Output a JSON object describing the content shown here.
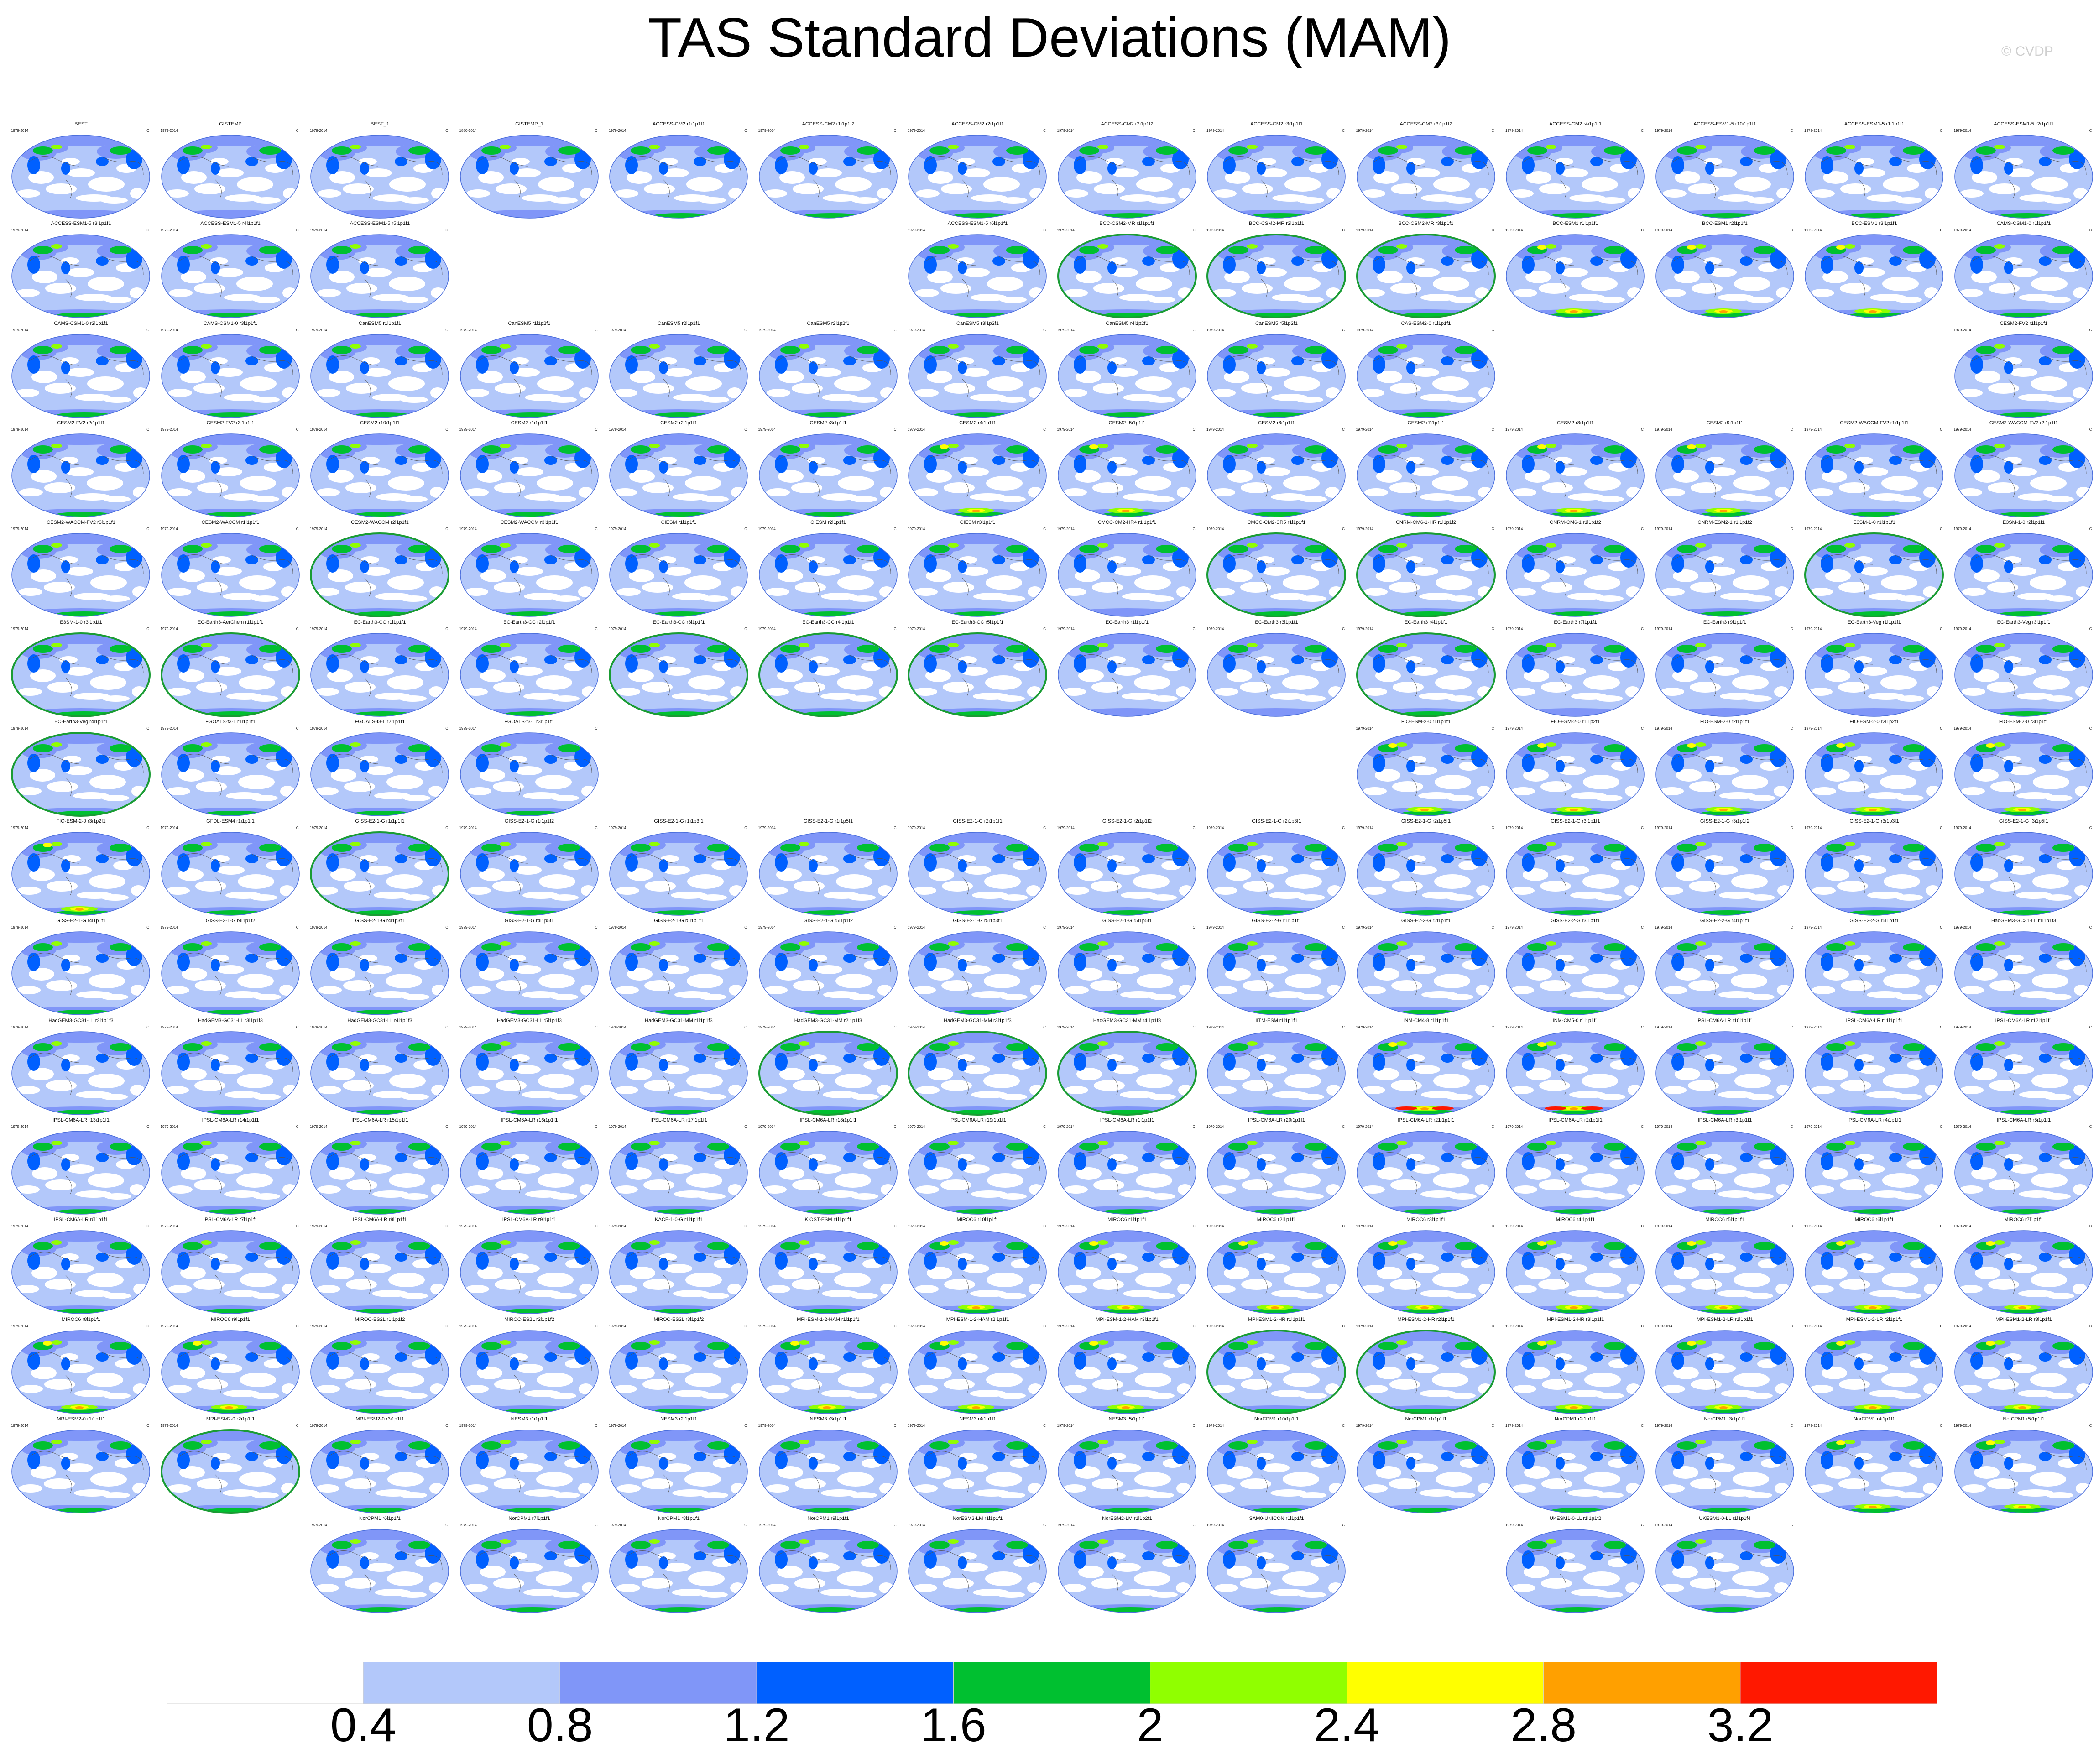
{
  "title": "TAS Standard Deviations (MAM)",
  "credit": "© CVDP",
  "units": "C",
  "palette": [
    "#ffffff",
    "#b3c8fa",
    "#8096f8",
    "#0060ff",
    "#00c030",
    "#90ff00",
    "#ffff00",
    "#ffa000",
    "#ff1800"
  ],
  "colorbar": {
    "labels": [
      "0.4",
      "0.8",
      "1.2",
      "1.6",
      "2",
      "2.4",
      "2.8",
      "3.2"
    ]
  },
  "grid": [
    [
      "BEST|1979-2014|0",
      "GISTEMP|1979-2014|0",
      "BEST_1|1979-2014|0",
      "GISTEMP_1|1880-2014|0",
      "ACCESS-CM2 r1i1p1f1|1979-2014|1",
      "ACCESS-CM2 r1i1p1f2|1979-2014|1",
      "ACCESS-CM2 r2i1p1f1|1979-2014|1",
      "ACCESS-CM2 r2i1p1f2|1979-2014|1",
      "ACCESS-CM2 r3i1p1f1|1979-2014|1",
      "ACCESS-CM2 r3i1p1f2|1979-2014|1",
      "ACCESS-CM2 r4i1p1f1|1979-2014|1",
      "ACCESS-ESM1-5 r10i1p1f1|1979-2014|1",
      "ACCESS-ESM1-5 r1i1p1f1|1979-2014|1",
      "ACCESS-ESM1-5 r2i1p1f1|1979-2014|1"
    ],
    [
      "ACCESS-ESM1-5 r3i1p1f1|1979-2014|1",
      "ACCESS-ESM1-5 r4i1p1f1|1979-2014|1",
      "ACCESS-ESM1-5 r5i1p1f1|1979-2014|1",
      "",
      "",
      "",
      "ACCESS-ESM1-5 r6i1p1f1|1979-2014|1",
      "BCC-CSM2-MR r1i1p1f1|1979-2014|2",
      "BCC-CSM2-MR r2i1p1f1|1979-2014|2",
      "BCC-CSM2-MR r3i1p1f1|1979-2014|2",
      "BCC-ESM1 r1i1p1f1|1979-2014|3",
      "BCC-ESM1 r2i1p1f1|1979-2014|3",
      "BCC-ESM1 r3i1p1f1|1979-2014|3",
      "CAMS-CSM1-0 r1i1p1f1|1979-2014|1"
    ],
    [
      "CAMS-CSM1-0 r2i1p1f1|1979-2014|1",
      "CAMS-CSM1-0 r3i1p1f1|1979-2014|1",
      "CanESM5 r1i1p1f1|1979-2014|1",
      "CanESM5 r1i1p2f1|1979-2014|1",
      "CanESM5 r2i1p1f1|1979-2014|1",
      "CanESM5 r2i1p2f1|1979-2014|1",
      "CanESM5 r3i1p2f1|1979-2014|1",
      "CanESM5 r4i1p2f1|1979-2014|1",
      "CanESM5 r5i1p2f1|1979-2014|1",
      "CAS-ESM2-0 r1i1p1f1|1979-2014|1",
      "",
      "",
      "",
      "CESM2-FV2 r1i1p1f1|1979-2014|1"
    ],
    [
      "CESM2-FV2 r2i1p1f1|1979-2014|1",
      "CESM2-FV2 r3i1p1f1|1979-2014|1",
      "CESM2 r10i1p1f1|1979-2014|1",
      "CESM2 r1i1p1f1|1979-2014|1",
      "CESM2 r2i1p1f1|1979-2014|1",
      "CESM2 r3i1p1f1|1979-2014|1",
      "CESM2 r4i1p1f1|1979-2014|3",
      "CESM2 r5i1p1f1|1979-2014|3",
      "CESM2 r6i1p1f1|1979-2014|1",
      "CESM2 r7i1p1f1|1979-2014|1",
      "CESM2 r8i1p1f1|1979-2014|3",
      "CESM2 r9i1p1f1|1979-2014|3",
      "CESM2-WACCM-FV2 r1i1p1f1|1979-2014|1",
      "CESM2-WACCM-FV2 r2i1p1f1|1979-2014|1"
    ],
    [
      "CESM2-WACCM-FV2 r3i1p1f1|1979-2014|1",
      "CESM2-WACCM r1i1p1f1|1979-2014|1",
      "CESM2-WACCM r2i1p1f1|1979-2014|2",
      "CESM2-WACCM r3i1p1f1|1979-2014|1",
      "CIESM r1i1p1f1|1979-2014|1",
      "CIESM r2i1p1f1|1979-2014|1",
      "CIESM r3i1p1f1|1979-2014|1",
      "CMCC-CM2-HR4 r1i1p1f1|1979-2014|0",
      "CMCC-CM2-SR5 r1i1p1f1|1979-2014|2",
      "CNRM-CM6-1-HR r1i1p1f2|1979-2014|2",
      "CNRM-CM6-1 r1i1p1f2|1979-2014|1",
      "CNRM-ESM2-1 r1i1p1f2|1979-2014|1",
      "E3SM-1-0 r1i1p1f1|1979-2014|2",
      "E3SM-1-0 r2i1p1f1|1979-2014|1"
    ],
    [
      "E3SM-1-0 r3i1p1f1|1979-2014|2",
      "EC-Earth3-AerChem r1i1p1f1|1979-2014|2",
      "EC-Earth3-CC r1i1p1f1|1979-2014|1",
      "EC-Earth3-CC r2i1p1f1|1979-2014|1",
      "EC-Earth3-CC r3i1p1f1|1979-2014|2",
      "EC-Earth3-CC r4i1p1f1|1979-2014|2",
      "EC-Earth3-CC r5i1p1f1|1979-2014|2",
      "EC-Earth3 r1i1p1f1|1979-2014|0",
      "EC-Earth3 r3i1p1f1|1979-2014|0",
      "EC-Earth3 r4i1p1f1|1979-2014|2",
      "EC-Earth3 r7i1p1f1|1979-2014|0",
      "EC-Earth3 r9i1p1f1|1979-2014|0",
      "EC-Earth3-Veg r1i1p1f1|1979-2014|0",
      "EC-Earth3-Veg r3i1p1f1|1979-2014|1"
    ],
    [
      "EC-Earth3-Veg r4i1p1f1|1979-2014|2",
      "FGOALS-f3-L r1i1p1f1|1979-2014|1",
      "FGOALS-f3-L r2i1p1f1|1979-2014|1",
      "FGOALS-f3-L r3i1p1f1|1979-2014|1",
      "",
      "",
      "",
      "",
      "",
      "FIO-ESM-2-0 r1i1p1f1|1979-2014|3",
      "FIO-ESM-2-0 r1i1p2f1|1979-2014|3",
      "FIO-ESM-2-0 r2i1p1f1|1979-2014|3",
      "FIO-ESM-2-0 r2i1p2f1|1979-2014|3",
      "FIO-ESM-2-0 r3i1p1f1|1979-2014|3"
    ],
    [
      "FIO-ESM-2-0 r3i1p2f1|1979-2014|3",
      "GFDL-ESM4 r1i1p1f1|1979-2014|1",
      "GISS-E2-1-G r1i1p1f1|1979-2014|2",
      "GISS-E2-1-G r1i1p1f2|1979-2014|1",
      "GISS-E2-1-G r1i1p3f1|1979-2014|1",
      "GISS-E2-1-G r1i1p5f1|1979-2014|1",
      "GISS-E2-1-G r2i1p1f1|1979-2014|1",
      "GISS-E2-1-G r2i1p1f2|1979-2014|1",
      "GISS-E2-1-G r2i1p3f1|1979-2014|1",
      "GISS-E2-1-G r2i1p5f1|1979-2014|1",
      "GISS-E2-1-G r3i1p1f1|1979-2014|1",
      "GISS-E2-1-G r3i1p1f2|1979-2014|1",
      "GISS-E2-1-G r3i1p3f1|1979-2014|1",
      "GISS-E2-1-G r3i1p5f1|1979-2014|1"
    ],
    [
      "GISS-E2-1-G r4i1p1f1|1979-2014|1",
      "GISS-E2-1-G r4i1p1f2|1979-2014|1",
      "GISS-E2-1-G r4i1p3f1|1979-2014|1",
      "GISS-E2-1-G r4i1p5f1|1979-2014|1",
      "GISS-E2-1-G r5i1p1f1|1979-2014|1",
      "GISS-E2-1-G r5i1p1f2|1979-2014|1",
      "GISS-E2-1-G r5i1p3f1|1979-2014|1",
      "GISS-E2-1-G r5i1p5f1|1979-2014|1",
      "GISS-E2-2-G r1i1p1f1|1979-2014|1",
      "GISS-E2-2-G r2i1p1f1|1979-2014|1",
      "GISS-E2-2-G r3i1p1f1|1979-2014|1",
      "GISS-E2-2-G r4i1p1f1|1979-2014|1",
      "GISS-E2-2-G r5i1p1f1|1979-2014|1",
      "HadGEM3-GC31-LL r1i1p1f3|1979-2014|1"
    ],
    [
      "HadGEM3-GC31-LL r2i1p1f3|1979-2014|1",
      "HadGEM3-GC31-LL r3i1p1f3|1979-2014|1",
      "HadGEM3-GC31-LL r4i1p1f3|1979-2014|1",
      "HadGEM3-GC31-LL r5i1p1f3|1979-2014|1",
      "HadGEM3-GC31-MM r1i1p1f3|1979-2014|1",
      "HadGEM3-GC31-MM r2i1p1f3|1979-2014|2",
      "HadGEM3-GC31-MM r3i1p1f3|1979-2014|2",
      "HadGEM3-GC31-MM r4i1p1f3|1979-2014|2",
      "IITM-ESM r1i1p1f1|1979-2014|1",
      "INM-CM4-8 r1i1p1f1|1979-2014|4",
      "INM-CM5-0 r1i1p1f1|1979-2014|4",
      "IPSL-CM6A-LR r10i1p1f1|1979-2014|1",
      "IPSL-CM6A-LR r11i1p1f1|1979-2014|1",
      "IPSL-CM6A-LR r12i1p1f1|1979-2014|1"
    ],
    [
      "IPSL-CM6A-LR r13i1p1f1|1979-2014|1",
      "IPSL-CM6A-LR r14i1p1f1|1979-2014|1",
      "IPSL-CM6A-LR r15i1p1f1|1979-2014|1",
      "IPSL-CM6A-LR r16i1p1f1|1979-2014|1",
      "IPSL-CM6A-LR r17i1p1f1|1979-2014|1",
      "IPSL-CM6A-LR r18i1p1f1|1979-2014|1",
      "IPSL-CM6A-LR r19i1p1f1|1979-2014|1",
      "IPSL-CM6A-LR r1i1p1f1|1979-2014|1",
      "IPSL-CM6A-LR r20i1p1f1|1979-2014|1",
      "IPSL-CM6A-LR r21i1p1f1|1979-2014|1",
      "IPSL-CM6A-LR r2i1p1f1|1979-2014|1",
      "IPSL-CM6A-LR r3i1p1f1|1979-2014|1",
      "IPSL-CM6A-LR r4i1p1f1|1979-2014|1",
      "IPSL-CM6A-LR r5i1p1f1|1979-2014|1"
    ],
    [
      "IPSL-CM6A-LR r6i1p1f1|1979-2014|1",
      "IPSL-CM6A-LR r7i1p1f1|1979-2014|1",
      "IPSL-CM6A-LR r8i1p1f1|1979-2014|1",
      "IPSL-CM6A-LR r9i1p1f1|1979-2014|1",
      "KACE-1-0-G r1i1p1f1|1979-2014|1",
      "KIOST-ESM r1i1p1f1|1979-2014|1",
      "MIROC6 r10i1p1f1|1979-2014|3",
      "MIROC6 r1i1p1f1|1979-2014|3",
      "MIROC6 r2i1p1f1|1979-2014|3",
      "MIROC6 r3i1p1f1|1979-2014|3",
      "MIROC6 r4i1p1f1|1979-2014|3",
      "MIROC6 r5i1p1f1|1979-2014|3",
      "MIROC6 r6i1p1f1|1979-2014|3",
      "MIROC6 r7i1p1f1|1979-2014|3"
    ],
    [
      "MIROC6 r8i1p1f1|1979-2014|3",
      "MIROC6 r9i1p1f1|1979-2014|3",
      "MIROC-ES2L r1i1p1f2|1979-2014|1",
      "MIROC-ES2L r2i1p1f2|1979-2014|1",
      "MIROC-ES2L r3i1p1f2|1979-2014|1",
      "MPI-ESM-1-2-HAM r1i1p1f1|1979-2014|3",
      "MPI-ESM-1-2-HAM r2i1p1f1|1979-2014|3",
      "MPI-ESM-1-2-HAM r3i1p1f1|1979-2014|3",
      "MPI-ESM1-2-HR r1i1p1f1|1979-2014|2",
      "MPI-ESM1-2-HR r2i1p1f1|1979-2014|2",
      "MPI-ESM1-2-HR r3i1p1f1|1979-2014|3",
      "MPI-ESM1-2-LR r1i1p1f1|1979-2014|3",
      "MPI-ESM1-2-LR r2i1p1f1|1979-2014|3",
      "MPI-ESM1-2-LR r3i1p1f1|1979-2014|3"
    ],
    [
      "MRI-ESM2-0 r1i1p1f1|1979-2014|1",
      "MRI-ESM2-0 r2i1p1f1|1979-2014|2",
      "MRI-ESM2-0 r3i1p1f1|1979-2014|1",
      "NESM3 r1i1p1f1|1979-2014|1",
      "NESM3 r2i1p1f1|1979-2014|1",
      "NESM3 r3i1p1f1|1979-2014|1",
      "NESM3 r4i1p1f1|1979-2014|1",
      "NESM3 r5i1p1f1|1979-2014|1",
      "NorCPM1 r10i1p1f1|1979-2014|1",
      "NorCPM1 r1i1p1f1|1979-2014|1",
      "NorCPM1 r2i1p1f1|1979-2014|1",
      "NorCPM1 r3i1p1f1|1979-2014|1",
      "NorCPM1 r4i1p1f1|1979-2014|3",
      "NorCPM1 r5i1p1f1|1979-2014|3"
    ],
    [
      "",
      "",
      "NorCPM1 r6i1p1f1|1979-2014|1",
      "NorCPM1 r7i1p1f1|1979-2014|1",
      "NorCPM1 r8i1p1f1|1979-2014|1",
      "NorCPM1 r9i1p1f1|1979-2014|1",
      "NorESM2-LM r1i1p1f1|1979-2014|1",
      "NorESM2-LM r1i1p2f1|1979-2014|1",
      "SAM0-UNICON r1i1p1f1|1979-2014|1",
      "",
      "UKESM1-0-LL r1i1p1f2|1979-2014|1",
      "UKESM1-0-LL r1i1p1f4|1979-2014|1",
      "",
      ""
    ]
  ]
}
